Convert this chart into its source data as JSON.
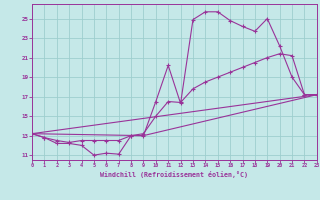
{
  "background_color": "#c5e8e8",
  "line_color": "#993399",
  "grid_color": "#9ecece",
  "xlabel": "Windchill (Refroidissement éolien,°C)",
  "xlim": [
    0,
    23
  ],
  "ylim": [
    10.5,
    26.5
  ],
  "yticks": [
    11,
    13,
    15,
    17,
    19,
    21,
    23,
    25
  ],
  "xticks": [
    0,
    1,
    2,
    3,
    4,
    5,
    6,
    7,
    8,
    9,
    10,
    11,
    12,
    13,
    14,
    15,
    16,
    17,
    18,
    19,
    20,
    21,
    22,
    23
  ],
  "curve1_x": [
    0,
    1,
    2,
    3,
    4,
    5,
    6,
    7,
    8,
    9,
    10,
    11,
    12,
    13,
    14,
    15,
    16,
    17,
    18,
    19,
    20,
    21,
    22,
    23
  ],
  "curve1_y": [
    13.2,
    12.8,
    12.2,
    12.2,
    12.0,
    11.0,
    11.2,
    11.1,
    13.0,
    13.0,
    16.5,
    20.2,
    16.3,
    24.9,
    25.7,
    25.7,
    24.8,
    24.2,
    23.7,
    25.0,
    22.2,
    19.0,
    17.2,
    17.2
  ],
  "curve2_x": [
    0,
    1,
    2,
    3,
    4,
    5,
    6,
    7,
    8,
    9,
    10,
    11,
    12,
    13,
    14,
    15,
    16,
    17,
    18,
    19,
    20,
    21,
    22,
    23
  ],
  "curve2_y": [
    13.2,
    12.8,
    12.5,
    12.3,
    12.5,
    12.5,
    12.5,
    12.5,
    13.0,
    13.2,
    15.0,
    16.5,
    16.4,
    17.8,
    18.5,
    19.0,
    19.5,
    20.0,
    20.5,
    21.0,
    21.4,
    21.2,
    17.2,
    17.2
  ],
  "curve3_x": [
    0,
    23
  ],
  "curve3_y": [
    13.2,
    17.2
  ],
  "curve4_x": [
    0,
    9,
    23
  ],
  "curve4_y": [
    13.2,
    13.0,
    17.2
  ]
}
